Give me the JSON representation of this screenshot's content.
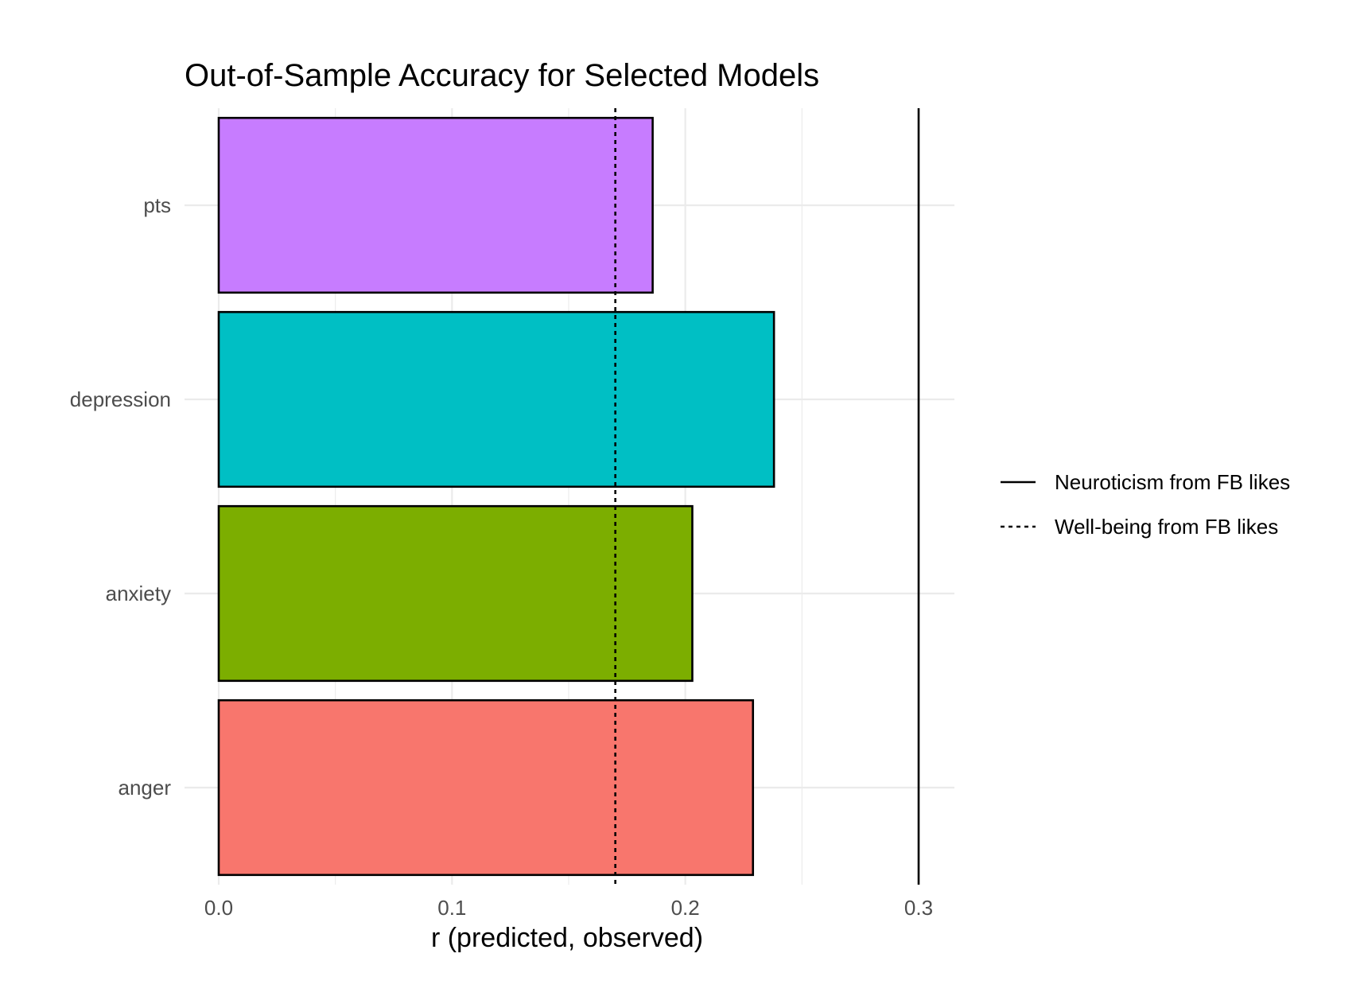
{
  "chart_data": {
    "type": "bar",
    "orientation": "horizontal",
    "title": "Out-of-Sample Accuracy for Selected Models",
    "xlabel": "r (predicted, observed)",
    "ylabel": "",
    "categories": [
      "anger",
      "anxiety",
      "depression",
      "pts"
    ],
    "values": [
      0.229,
      0.203,
      0.238,
      0.186
    ],
    "colors": [
      "#F8766D",
      "#7CAE00",
      "#00BFC4",
      "#C77CFF"
    ],
    "bar_outline_color": "#000000",
    "xlim": [
      0,
      0.3
    ],
    "x_ticks": [
      0,
      0.1,
      0.2,
      0.3
    ],
    "x_tick_labels": [
      "0.0",
      "0.1",
      "0.2",
      "0.3"
    ],
    "grid": true,
    "reference_lines": [
      {
        "label": "Neuroticism from FB likes",
        "value": 0.3,
        "linetype": "solid"
      },
      {
        "label": "Well-being from FB likes",
        "value": 0.17,
        "linetype": "dashed"
      }
    ],
    "legend_position": "right"
  }
}
